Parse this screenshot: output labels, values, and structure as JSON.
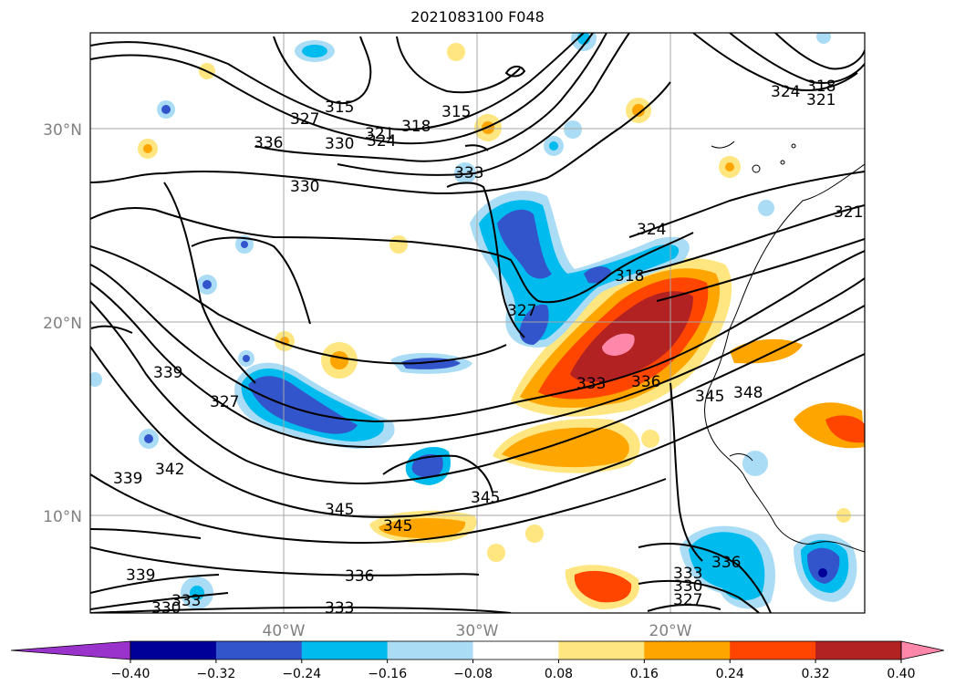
{
  "title": "2021083100 F048",
  "map": {
    "lat_labels": [
      "30°N",
      "20°N",
      "10°N"
    ],
    "lon_labels": [
      "40°W",
      "30°W",
      "20°W"
    ],
    "contour_labels": [
      "315",
      "327",
      "321",
      "324",
      "318",
      "315",
      "330",
      "336",
      "330",
      "333",
      "324",
      "318",
      "327",
      "339",
      "327",
      "333",
      "336",
      "345",
      "348",
      "339",
      "342",
      "345",
      "345",
      "345",
      "336",
      "333",
      "330",
      "327",
      "339",
      "330",
      "333",
      "336",
      "333",
      "324",
      "321",
      "318",
      "321"
    ]
  },
  "colorbar": {
    "ticks": [
      "−0.40",
      "−0.32",
      "−0.24",
      "−0.16",
      "−0.08",
      "0.08",
      "0.16",
      "0.24",
      "0.32",
      "0.40"
    ],
    "colors": [
      "#9933cc",
      "#000099",
      "#3355cc",
      "#00bbee",
      "#aaddf5",
      "#ffffff",
      "#ffe680",
      "#ffa500",
      "#ff4500",
      "#b22222",
      "#ff88aa"
    ]
  }
}
